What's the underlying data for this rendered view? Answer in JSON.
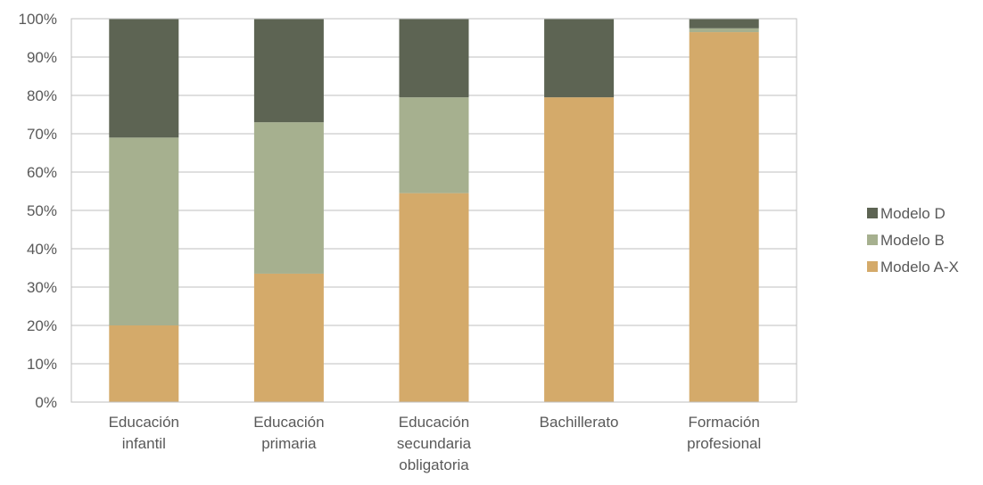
{
  "chart_data": {
    "type": "bar",
    "stacked": true,
    "categories": [
      [
        "Educación",
        "infantil"
      ],
      [
        "Educación",
        "primaria"
      ],
      [
        "Educación",
        "secundaria",
        "obligatoria"
      ],
      [
        "Bachillerato"
      ],
      [
        "Formación",
        "profesional"
      ]
    ],
    "series": [
      {
        "name": "Modelo A-X",
        "color": "#d4aa6a",
        "values": [
          20,
          33.5,
          54.5,
          79.5,
          96.5
        ]
      },
      {
        "name": "Modelo B",
        "color": "#a6b08f",
        "values": [
          49,
          39.5,
          25,
          0,
          1
        ]
      },
      {
        "name": "Modelo D",
        "color": "#5d6453",
        "values": [
          31,
          27,
          20.5,
          20.5,
          2.5
        ]
      }
    ],
    "y_ticks": [
      "0%",
      "10%",
      "20%",
      "30%",
      "40%",
      "50%",
      "60%",
      "70%",
      "80%",
      "90%",
      "100%"
    ],
    "ylim": [
      0,
      100
    ],
    "legend": {
      "position": "right",
      "order": [
        "Modelo D",
        "Modelo B",
        "Modelo A-X"
      ]
    },
    "grid": true
  }
}
